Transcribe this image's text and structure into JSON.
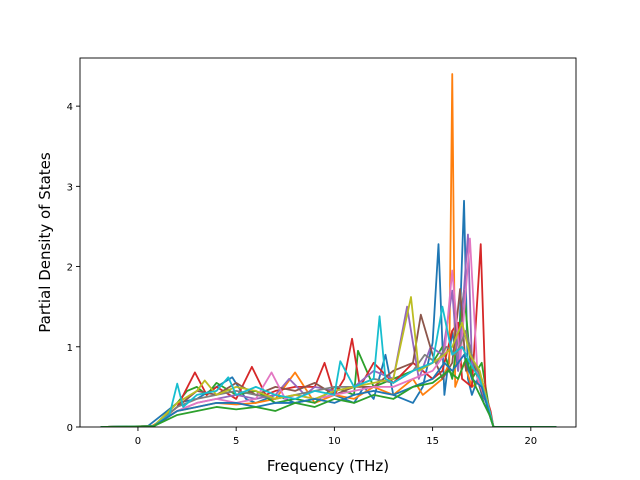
{
  "chart_data": {
    "type": "line",
    "title": "",
    "xlabel": "Frequency (THz)",
    "ylabel": "Partial Density of States",
    "xlim": [
      -2.95,
      22.3
    ],
    "ylim": [
      0,
      4.6
    ],
    "xticks": [
      0,
      5,
      10,
      15,
      20
    ],
    "yticks": [
      0,
      1,
      2,
      3,
      4
    ],
    "grid": false,
    "legend": "none",
    "series": [
      {
        "color": "#1f77b4",
        "x": [
          -1.9,
          0.5,
          2,
          3,
          4,
          4.8,
          5.5,
          6,
          7,
          8,
          9,
          10,
          11,
          11.5,
          12,
          12.6,
          13,
          14,
          14.5,
          15,
          15.3,
          15.6,
          16,
          16.3,
          16.6,
          16.8,
          17,
          17.3,
          17.6,
          17.9,
          18.1,
          21.3
        ],
        "y": [
          0,
          0.01,
          0.3,
          0.35,
          0.5,
          0.62,
          0.35,
          0.3,
          0.4,
          0.3,
          0.35,
          0.4,
          0.3,
          0.5,
          0.35,
          0.9,
          0.4,
          0.3,
          0.5,
          1.05,
          2.28,
          0.4,
          1.2,
          0.7,
          2.82,
          0.6,
          0.4,
          0.6,
          0.3,
          0.15,
          0,
          0
        ]
      },
      {
        "color": "#ff7f0e",
        "x": [
          -1.9,
          0.7,
          2,
          3,
          4,
          5,
          6,
          7,
          8,
          9,
          10,
          11,
          12,
          13,
          14,
          14.5,
          15,
          15.5,
          15.85,
          16.0,
          16.15,
          16.6,
          17,
          17.5,
          17.9,
          18.1,
          21.3
        ],
        "y": [
          0,
          0.01,
          0.2,
          0.25,
          0.3,
          0.28,
          0.3,
          0.35,
          0.68,
          0.3,
          0.4,
          0.35,
          0.5,
          0.4,
          0.6,
          0.4,
          0.5,
          0.6,
          0.8,
          4.4,
          0.5,
          0.8,
          0.5,
          0.6,
          0.2,
          0,
          0
        ]
      },
      {
        "color": "#2ca02c",
        "x": [
          -1.9,
          0.8,
          2,
          2.5,
          3,
          3.5,
          4,
          5,
          6,
          7,
          8,
          9,
          10,
          11,
          11.2,
          12,
          13,
          14,
          15,
          15.5,
          16,
          16.6,
          17,
          17.5,
          17.9,
          18.1,
          21.3
        ],
        "y": [
          0,
          0.01,
          0.3,
          0.45,
          0.5,
          0.4,
          0.55,
          0.4,
          0.45,
          0.3,
          0.35,
          0.3,
          0.5,
          0.4,
          0.95,
          0.5,
          0.6,
          0.7,
          0.8,
          1.0,
          0.6,
          1.7,
          0.6,
          0.8,
          0.2,
          0,
          0
        ]
      },
      {
        "color": "#d62728",
        "x": [
          -1.9,
          0.8,
          2,
          2.9,
          3.5,
          4,
          5,
          5.8,
          6.5,
          7,
          8,
          9,
          9.5,
          10,
          10.5,
          10.9,
          11.3,
          12,
          12.4,
          13,
          14,
          15,
          15.5,
          16,
          16.3,
          16.5,
          17,
          17.45,
          17.7,
          17.95,
          18.1,
          21.3
        ],
        "y": [
          0,
          0.01,
          0.25,
          0.68,
          0.4,
          0.5,
          0.35,
          0.75,
          0.4,
          0.45,
          0.5,
          0.5,
          0.8,
          0.4,
          0.6,
          1.1,
          0.5,
          0.8,
          0.7,
          0.55,
          0.8,
          0.6,
          0.7,
          1.2,
          1.3,
          0.6,
          0.5,
          2.28,
          0.4,
          0.2,
          0,
          0
        ]
      },
      {
        "color": "#9467bd",
        "x": [
          -1.9,
          0.8,
          2,
          3,
          4,
          5,
          6,
          7,
          7.7,
          8.5,
          9,
          10,
          11,
          12,
          13,
          13.7,
          14.3,
          14.9,
          15.5,
          16,
          16.3,
          16.8,
          17,
          17.5,
          17.9,
          18.1,
          21.3
        ],
        "y": [
          0,
          0.01,
          0.2,
          0.3,
          0.35,
          0.4,
          0.35,
          0.4,
          0.6,
          0.4,
          0.5,
          0.45,
          0.5,
          0.7,
          0.6,
          1.5,
          0.6,
          1.0,
          0.9,
          1.7,
          0.7,
          2.4,
          0.8,
          0.6,
          0.2,
          0,
          0
        ]
      },
      {
        "color": "#8c564b",
        "x": [
          -1.9,
          0.8,
          2,
          3,
          4,
          5,
          6,
          7,
          8,
          9,
          10,
          11,
          12,
          13,
          14,
          14.4,
          15,
          15.5,
          16,
          16.4,
          16.7,
          17,
          17.4,
          17.9,
          18.1,
          21.3
        ],
        "y": [
          0,
          0.01,
          0.25,
          0.45,
          0.4,
          0.55,
          0.4,
          0.5,
          0.45,
          0.55,
          0.4,
          0.5,
          0.5,
          0.7,
          0.8,
          1.4,
          0.9,
          0.6,
          0.8,
          1.72,
          0.7,
          0.9,
          0.5,
          0.2,
          0,
          0
        ]
      },
      {
        "color": "#e377c2",
        "x": [
          -1.9,
          0.8,
          2,
          3,
          4,
          5,
          6,
          6.8,
          7.5,
          8,
          9,
          10,
          11,
          12,
          13,
          14,
          15,
          15.6,
          16.0,
          16.4,
          16.9,
          17.3,
          17.9,
          18.1,
          21.3
        ],
        "y": [
          0,
          0.01,
          0.2,
          0.3,
          0.35,
          0.3,
          0.35,
          0.68,
          0.35,
          0.4,
          0.35,
          0.4,
          0.45,
          0.5,
          0.5,
          0.6,
          0.7,
          0.9,
          1.95,
          0.8,
          2.35,
          0.6,
          0.2,
          0,
          0
        ]
      },
      {
        "color": "#7f7f7f",
        "x": [
          -1.9,
          0.8,
          2,
          3,
          4,
          5,
          6,
          7,
          8,
          9,
          10,
          11,
          12,
          13,
          14,
          14.6,
          15.2,
          15.7,
          16.2,
          16.7,
          17.1,
          17.5,
          17.9,
          18.1,
          21.3
        ],
        "y": [
          0,
          0.01,
          0.25,
          0.35,
          0.4,
          0.45,
          0.4,
          0.35,
          0.4,
          0.45,
          0.5,
          0.5,
          0.6,
          0.55,
          0.7,
          0.9,
          0.8,
          1.0,
          0.9,
          1.2,
          0.8,
          0.6,
          0.2,
          0,
          0
        ]
      },
      {
        "color": "#bcbd22",
        "x": [
          -1.9,
          0.8,
          2,
          3,
          3.4,
          4,
          5,
          6,
          7,
          8,
          9,
          10,
          11,
          12,
          13,
          13.9,
          14.3,
          15,
          15.6,
          16,
          16.5,
          16.9,
          17.4,
          17.9,
          18.1,
          21.3
        ],
        "y": [
          0,
          0.01,
          0.3,
          0.45,
          0.58,
          0.4,
          0.5,
          0.45,
          0.35,
          0.4,
          0.35,
          0.45,
          0.5,
          0.55,
          0.6,
          1.62,
          0.7,
          0.8,
          0.9,
          1.0,
          1.3,
          0.9,
          0.7,
          0.2,
          0,
          0
        ]
      },
      {
        "color": "#17becf",
        "x": [
          -1.9,
          0.8,
          1.6,
          2.0,
          2.3,
          3,
          4,
          4.6,
          5,
          6,
          7,
          8,
          9,
          10,
          10.3,
          11,
          12,
          12.3,
          12.6,
          13,
          14,
          15,
          15.5,
          16,
          16.5,
          16.9,
          17.4,
          17.9,
          18.1,
          21.3
        ],
        "y": [
          0,
          0.01,
          0.15,
          0.54,
          0.25,
          0.4,
          0.45,
          0.62,
          0.4,
          0.5,
          0.4,
          0.35,
          0.45,
          0.4,
          0.82,
          0.5,
          0.6,
          1.38,
          0.6,
          0.55,
          0.7,
          0.8,
          1.5,
          0.9,
          1.0,
          0.8,
          0.6,
          0.2,
          0,
          0
        ]
      },
      {
        "color": "#1f77b4",
        "x": [
          -1.9,
          0.8,
          2,
          3,
          4,
          5,
          6,
          7,
          8,
          9,
          10,
          11,
          12,
          13,
          14,
          15,
          15.6,
          16,
          16.6,
          17,
          17.5,
          17.9,
          18.1,
          21.3
        ],
        "y": [
          0,
          0.01,
          0.2,
          0.25,
          0.3,
          0.3,
          0.25,
          0.3,
          0.3,
          0.35,
          0.3,
          0.4,
          0.45,
          0.4,
          0.5,
          0.6,
          0.8,
          0.7,
          0.9,
          0.6,
          0.5,
          0.15,
          0,
          0
        ]
      },
      {
        "color": "#2ca02c",
        "x": [
          -1.9,
          0.8,
          2,
          3,
          4,
          5,
          6,
          7,
          8,
          9,
          10,
          11,
          12,
          13,
          14,
          15,
          15.8,
          16.3,
          16.7,
          17.2,
          17.9,
          18.1,
          21.3
        ],
        "y": [
          0,
          0.01,
          0.15,
          0.2,
          0.25,
          0.22,
          0.25,
          0.2,
          0.3,
          0.25,
          0.35,
          0.3,
          0.4,
          0.35,
          0.5,
          0.55,
          0.7,
          0.6,
          0.85,
          0.5,
          0.15,
          0,
          0
        ]
      }
    ]
  }
}
